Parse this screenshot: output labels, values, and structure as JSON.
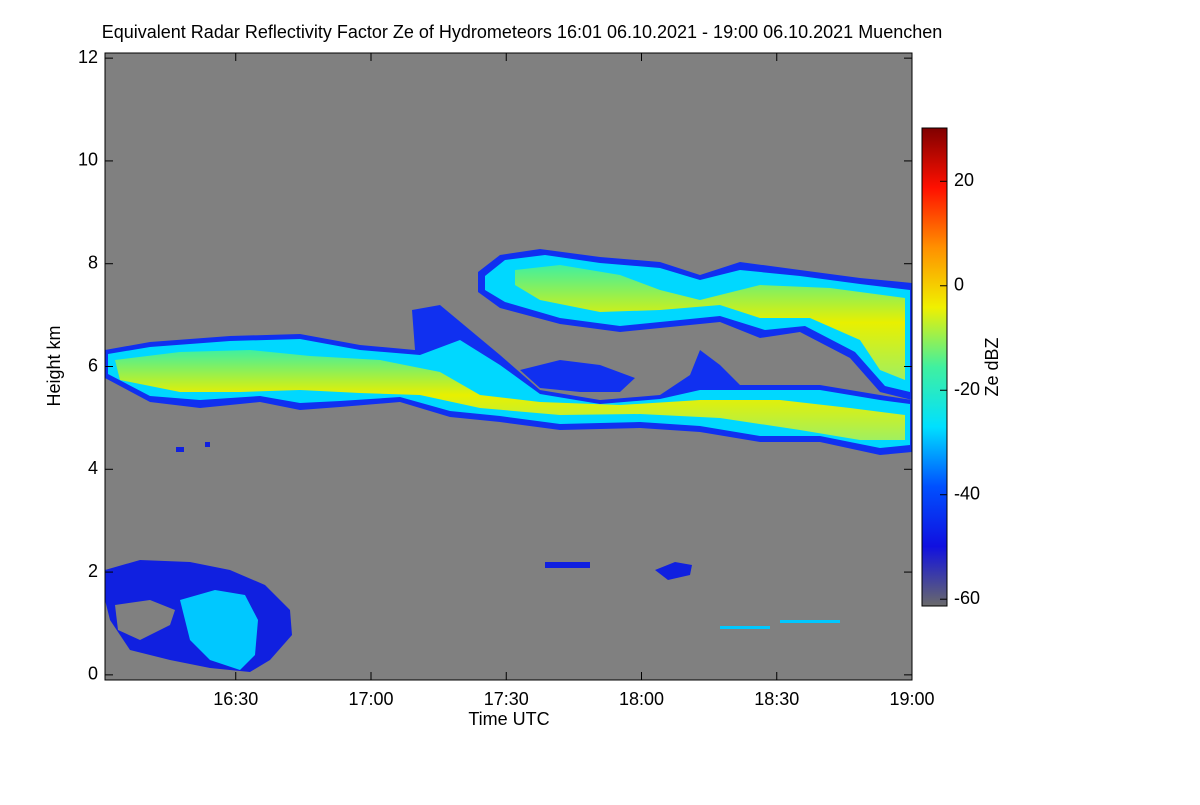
{
  "chart_data": {
    "type": "time-height",
    "title": "Equivalent Radar Reflectivity Factor Ze of Hydrometeors   16:01 06.10.2021 - 19:00 06.10.2021 Muenchen",
    "x_label": "Time UTC",
    "y_label": "Height km",
    "colorbar_label": "Ze dBZ",
    "xlim": [
      961,
      1140
    ],
    "xticks": [
      {
        "value": 990,
        "label": "16:30"
      },
      {
        "value": 1020,
        "label": "17:00"
      },
      {
        "value": 1050,
        "label": "17:30"
      },
      {
        "value": 1080,
        "label": "18:00"
      },
      {
        "value": 1110,
        "label": "18:30"
      },
      {
        "value": 1140,
        "label": "19:00"
      }
    ],
    "ylim": [
      -0.1,
      12.1
    ],
    "yticks": [
      0,
      2,
      4,
      6,
      8,
      10,
      12
    ],
    "clim": [
      -61.3,
      30.2
    ],
    "cticks": [
      -60,
      -40,
      -20,
      0,
      20
    ],
    "colorscale": [
      "#6a6a6a",
      "#1010e0",
      "#0050ff",
      "#00e0ff",
      "#40f0a0",
      "#f0f000",
      "#ff9000",
      "#ff1000",
      "#800000"
    ],
    "background": "#808080"
  }
}
